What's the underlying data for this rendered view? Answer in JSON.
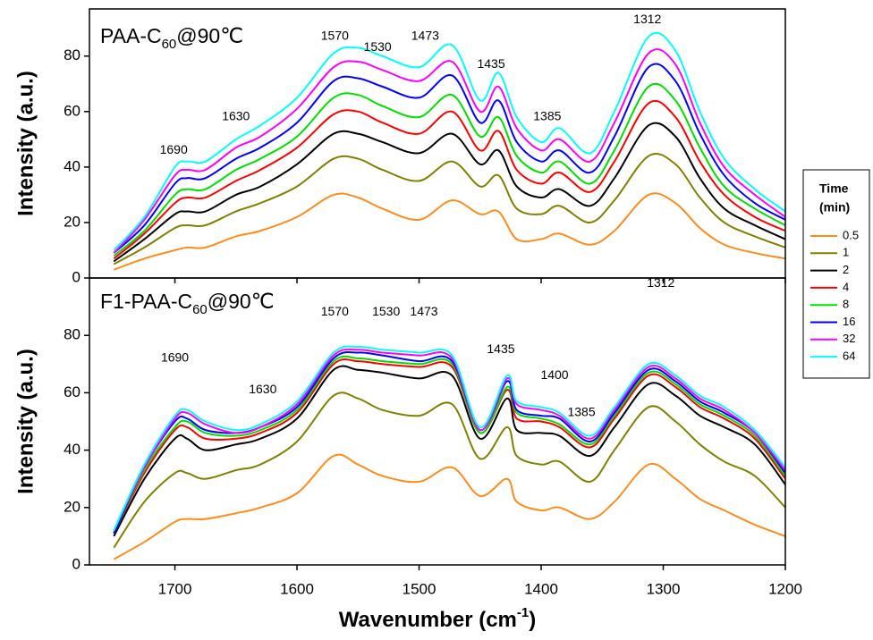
{
  "chart_data": [
    {
      "type": "line",
      "title_parts": [
        "PAA-C",
        "60",
        "@90℃"
      ],
      "y_label": "Intensity (a.u.)",
      "x": [
        1750,
        1725,
        1700,
        1690,
        1675,
        1650,
        1630,
        1600,
        1570,
        1550,
        1530,
        1500,
        1473,
        1450,
        1435,
        1420,
        1400,
        1385,
        1360,
        1340,
        1312,
        1290,
        1270,
        1250,
        1225,
        1200
      ],
      "xlim": [
        1770,
        1200
      ],
      "xticks": [
        1700,
        1600,
        1500,
        1400,
        1300,
        1200
      ],
      "ylim": [
        0,
        97
      ],
      "yticks": [
        0,
        20,
        40,
        60,
        80
      ],
      "series": [
        {
          "name": "0.5",
          "color": "#ff8c1a",
          "values": [
            3,
            7,
            10,
            11,
            11,
            15,
            17,
            22,
            30,
            29,
            25,
            21,
            28,
            23,
            24,
            14,
            14,
            16,
            12,
            17,
            30,
            27,
            18,
            12,
            9,
            7
          ]
        },
        {
          "name": "1",
          "color": "#808000",
          "values": [
            5,
            11,
            18,
            19,
            19,
            24,
            27,
            33,
            43,
            43,
            39,
            35,
            42,
            33,
            37,
            25,
            23,
            26,
            20,
            28,
            44,
            41,
            29,
            20,
            15,
            11
          ]
        },
        {
          "name": "2",
          "color": "#000000",
          "values": [
            6,
            14,
            23,
            24,
            24,
            30,
            33,
            41,
            52,
            52,
            49,
            45,
            52,
            41,
            46,
            33,
            29,
            32,
            26,
            36,
            55,
            51,
            36,
            25,
            19,
            14
          ]
        },
        {
          "name": "4",
          "color": "#ff0000",
          "values": [
            7,
            16,
            27,
            29,
            29,
            35,
            39,
            47,
            59,
            60,
            56,
            52,
            60,
            46,
            53,
            39,
            34,
            38,
            31,
            42,
            63,
            58,
            42,
            30,
            22,
            17
          ]
        },
        {
          "name": "8",
          "color": "#00e000",
          "values": [
            8,
            17,
            30,
            32,
            32,
            39,
            43,
            51,
            65,
            66,
            62,
            58,
            66,
            51,
            58,
            44,
            38,
            42,
            34,
            46,
            69,
            64,
            47,
            33,
            25,
            19
          ]
        },
        {
          "name": "16",
          "color": "#0000ff",
          "values": [
            9,
            19,
            34,
            36,
            36,
            43,
            47,
            56,
            71,
            72,
            69,
            65,
            73,
            56,
            64,
            49,
            42,
            46,
            38,
            51,
            76,
            71,
            52,
            37,
            27,
            21
          ]
        },
        {
          "name": "32",
          "color": "#ff00ff",
          "values": [
            9,
            21,
            37,
            39,
            39,
            47,
            51,
            61,
            76,
            78,
            75,
            71,
            78,
            60,
            69,
            54,
            46,
            50,
            42,
            56,
            81,
            77,
            56,
            40,
            30,
            22
          ]
        },
        {
          "name": "64",
          "color": "#00ffff",
          "values": [
            10,
            22,
            40,
            42,
            42,
            50,
            55,
            65,
            81,
            83,
            80,
            76,
            84,
            64,
            74,
            58,
            49,
            54,
            45,
            60,
            87,
            82,
            60,
            43,
            32,
            24
          ]
        }
      ],
      "annotations": [
        {
          "text": "1690",
          "x": 1701,
          "y": 46
        },
        {
          "text": "1630",
          "x": 1650,
          "y": 58
        },
        {
          "text": "1570",
          "x": 1569,
          "y": 87
        },
        {
          "text": "1530",
          "x": 1534,
          "y": 83
        },
        {
          "text": "1473",
          "x": 1495,
          "y": 87
        },
        {
          "text": "1435",
          "x": 1441,
          "y": 77
        },
        {
          "text": "1385",
          "x": 1395,
          "y": 58
        },
        {
          "text": "1312",
          "x": 1313,
          "y": 93
        }
      ],
      "legend_title": [
        "Time",
        "(min)"
      ]
    },
    {
      "type": "line",
      "title_parts": [
        "F1-PAA-C",
        "60",
        "@90℃"
      ],
      "y_label": "Intensity (a.u.)",
      "x_label_parts": [
        "Wavenumber (cm",
        "-1",
        ")"
      ],
      "x": [
        1750,
        1725,
        1700,
        1690,
        1675,
        1650,
        1630,
        1600,
        1570,
        1550,
        1530,
        1500,
        1473,
        1450,
        1428,
        1420,
        1400,
        1385,
        1360,
        1340,
        1312,
        1290,
        1270,
        1250,
        1225,
        1200
      ],
      "xlim": [
        1770,
        1200
      ],
      "xticks": [
        1700,
        1600,
        1500,
        1400,
        1300,
        1200
      ],
      "ylim": [
        0,
        100
      ],
      "yticks": [
        0,
        20,
        40,
        60,
        80
      ],
      "series": [
        {
          "name": "0.5",
          "color": "#ff8c1a",
          "values": [
            2,
            8,
            15,
            16,
            16,
            18,
            20,
            25,
            38,
            35,
            31,
            29,
            34,
            24,
            30,
            22,
            19,
            20,
            16,
            22,
            35,
            30,
            23,
            19,
            14,
            10
          ]
        },
        {
          "name": "1",
          "color": "#808000",
          "values": [
            6,
            22,
            32,
            32,
            30,
            33,
            35,
            43,
            59,
            58,
            54,
            52,
            56,
            37,
            48,
            38,
            35,
            36,
            29,
            40,
            55,
            50,
            42,
            36,
            31,
            20
          ]
        },
        {
          "name": "2",
          "color": "#000000",
          "values": [
            10,
            30,
            44,
            44,
            40,
            42,
            44,
            51,
            68,
            68,
            67,
            65,
            66,
            44,
            58,
            47,
            46,
            45,
            38,
            48,
            63,
            59,
            52,
            48,
            42,
            28
          ]
        },
        {
          "name": "4",
          "color": "#ff0000",
          "values": [
            11,
            32,
            47,
            48,
            44,
            44,
            46,
            53,
            70,
            71,
            70,
            69,
            69,
            46,
            61,
            51,
            50,
            48,
            41,
            51,
            66,
            62,
            55,
            51,
            44,
            30
          ]
        },
        {
          "name": "8",
          "color": "#00e000",
          "values": [
            11,
            33,
            48,
            50,
            46,
            45,
            47,
            54,
            71,
            72,
            71,
            70,
            70,
            46,
            62,
            53,
            51,
            49,
            42,
            52,
            67,
            63,
            56,
            52,
            45,
            31
          ]
        },
        {
          "name": "16",
          "color": "#0000ff",
          "values": [
            11,
            34,
            50,
            51,
            47,
            46,
            48,
            55,
            72,
            74,
            73,
            71,
            71,
            47,
            64,
            54,
            52,
            51,
            43,
            53,
            68,
            64,
            57,
            53,
            46,
            32
          ]
        },
        {
          "name": "32",
          "color": "#ff00ff",
          "values": [
            12,
            34,
            51,
            53,
            49,
            46,
            48,
            56,
            73,
            75,
            74,
            73,
            72,
            47,
            65,
            56,
            54,
            52,
            44,
            54,
            69,
            65,
            58,
            54,
            46,
            33
          ]
        },
        {
          "name": "64",
          "color": "#00ffff",
          "values": [
            12,
            35,
            52,
            54,
            50,
            47,
            49,
            57,
            74,
            76,
            75,
            74,
            73,
            48,
            66,
            57,
            55,
            53,
            45,
            55,
            70,
            66,
            59,
            55,
            47,
            34
          ]
        }
      ],
      "annotations": [
        {
          "text": "1690",
          "x": 1700,
          "y": 72
        },
        {
          "text": "1630",
          "x": 1628,
          "y": 61
        },
        {
          "text": "1570",
          "x": 1569,
          "y": 88
        },
        {
          "text": "1530",
          "x": 1527,
          "y": 88
        },
        {
          "text": "1473",
          "x": 1496,
          "y": 88
        },
        {
          "text": "1435",
          "x": 1433,
          "y": 75
        },
        {
          "text": "1400",
          "x": 1389,
          "y": 66
        },
        {
          "text": "1385",
          "x": 1367,
          "y": 53
        },
        {
          "text": "1312",
          "x": 1302,
          "y": 98
        }
      ]
    }
  ]
}
